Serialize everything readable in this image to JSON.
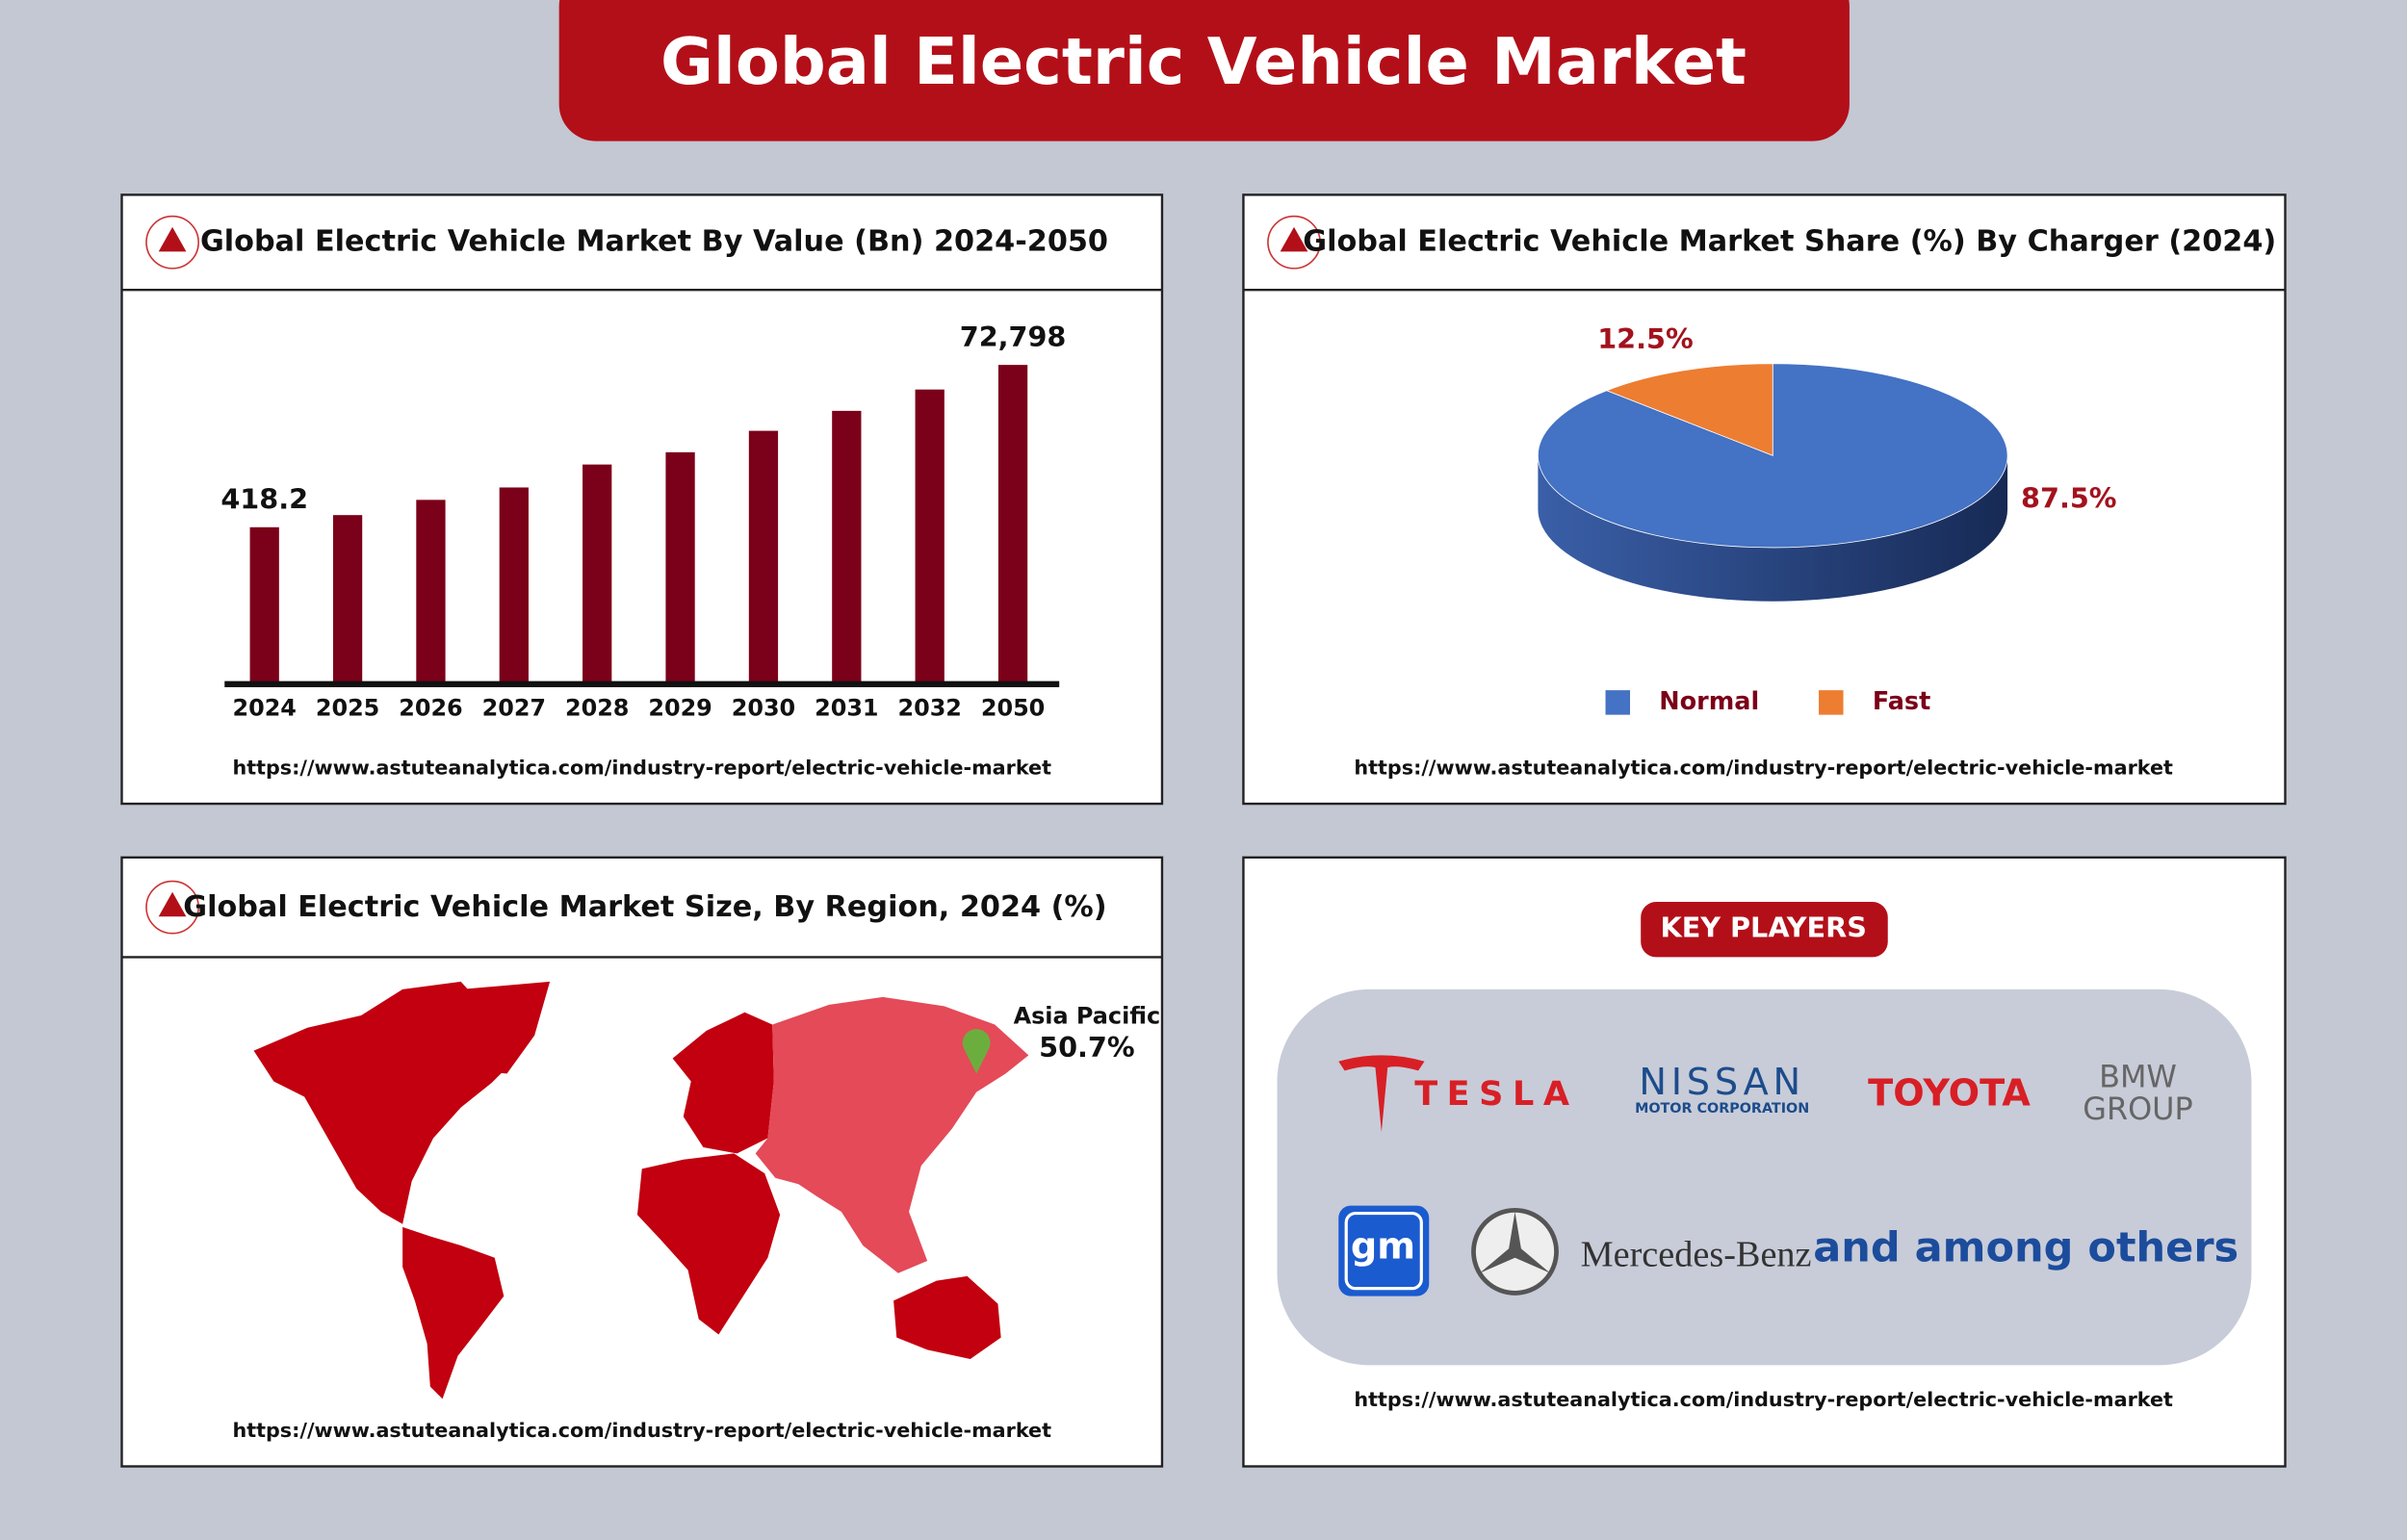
{
  "header": {
    "title": "Global Electric Vehicle Market"
  },
  "chart_data": [
    {
      "type": "bar",
      "title": "Global Electric Vehicle Market By Value (Bn) 2024-2050",
      "categories": [
        "2024",
        "2025",
        "2026",
        "2027",
        "2028",
        "2029",
        "2030",
        "2031",
        "2032",
        "2050"
      ],
      "values": [
        418.2,
        615,
        998,
        1480,
        3070,
        4530,
        8960,
        16900,
        33300,
        72798
      ],
      "value_labels": [
        "418.2",
        null,
        null,
        null,
        null,
        null,
        null,
        null,
        null,
        "72,798"
      ],
      "color": "#7b0019",
      "log_scale": true,
      "ylim": [
        3,
        440000
      ],
      "source": "https://www.astuteanalytica.com/industry-report/electric-vehicle-market"
    },
    {
      "type": "pie",
      "title": "Global Electric Vehicle Market Share (%) By Charger (2024)",
      "categories": [
        "Normal",
        "Fast"
      ],
      "values": [
        87.5,
        12.5
      ],
      "value_labels": [
        "87.5%",
        "12.5%"
      ],
      "colors": [
        "#4472c4",
        "#ed7d31"
      ],
      "source": "https://www.astuteanalytica.com/industry-report/electric-vehicle-market"
    },
    {
      "type": "map",
      "title": "Global Electric Vehicle Market Size, By Region, 2024 (%)",
      "categories": [
        "Asia Pacific"
      ],
      "values": [
        50.7
      ],
      "value_labels": [
        "50.7%"
      ],
      "color": "#e44a58",
      "source": "https://www.astuteanalytica.com/industry-report/electric-vehicle-market"
    }
  ],
  "key_players": {
    "title": "KEY PLAYERS",
    "logos": [
      "TESLA",
      "NISSAN",
      "MOTOR CORPORATION",
      "TOYOTA",
      "BMW",
      "GROUP",
      "gm",
      "Mercedes-Benz",
      "and among others"
    ],
    "source": "https://www.astuteanalytica.com/industry-report/electric-vehicle-market"
  }
}
